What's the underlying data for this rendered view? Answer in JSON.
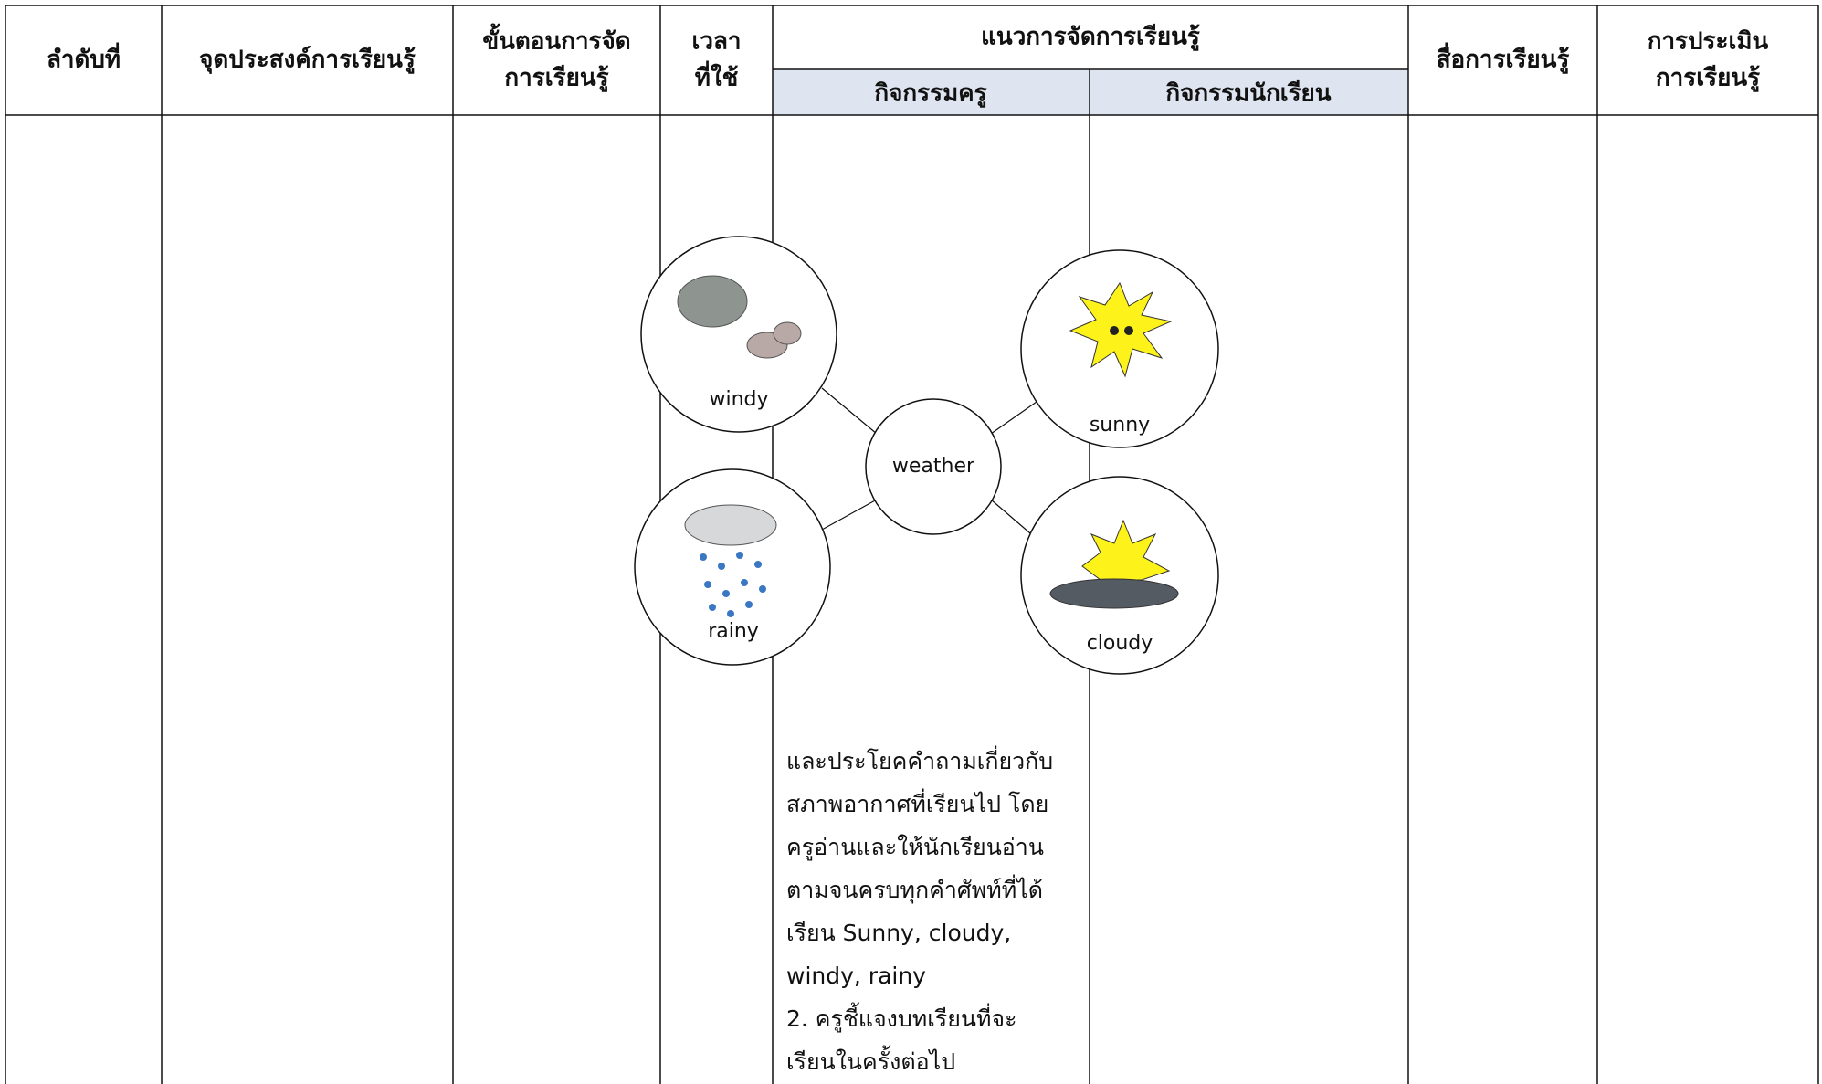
{
  "header": {
    "columns": [
      {
        "lines": [
          "ลำดับที่"
        ]
      },
      {
        "lines": [
          "จุดประสงค์การเรียนรู้"
        ]
      },
      {
        "lines": [
          "ขั้นตอนการจัด",
          "การเรียนรู้"
        ]
      },
      {
        "lines": [
          "เวลา",
          "ที่ใช้"
        ]
      },
      {
        "lines": [
          "แนวการจัดการเรียนรู้"
        ]
      },
      {
        "lines": [
          "สื่อการเรียนรู้"
        ]
      },
      {
        "lines": [
          "การประเมิน",
          "การเรียนรู้"
        ]
      }
    ],
    "subcolumns": [
      "กิจกรรมครู",
      "กิจกรรมนักเรียน"
    ]
  },
  "diagram": {
    "center": "weather",
    "nodes": [
      "windy",
      "sunny",
      "rainy",
      "cloudy"
    ]
  },
  "teacher_text": [
    "และประโยคคำถามเกี่ยวกับ",
    "สภาพอากาศที่เรียนไป โดย",
    "ครูอ่านและให้นักเรียนอ่าน",
    "ตามจนครบทุกคำศัพท์ที่ได้",
    "เรียน Sunny, cloudy,",
    "windy, rainy",
    "2. ครูชี้แจงบทเรียนที่จะ",
    "เรียนในครั้งต่อไป"
  ]
}
